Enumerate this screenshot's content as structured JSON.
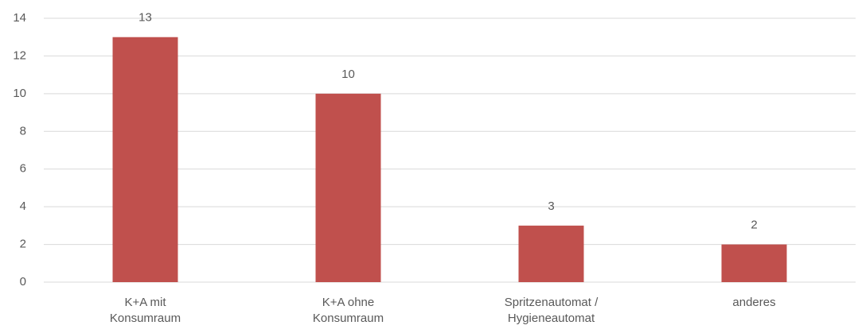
{
  "chart_data": {
    "type": "bar",
    "categories": [
      "K+A mit Konsumraum",
      "K+A ohne Konsumraum",
      "Spritzenautomat / Hygieneautomat",
      "anderes"
    ],
    "values": [
      13,
      10,
      3,
      2
    ],
    "color": "#c0504d",
    "ylim": [
      0,
      14
    ],
    "yticks": [
      0,
      2,
      4,
      6,
      8,
      10,
      12,
      14
    ],
    "grid": true
  }
}
